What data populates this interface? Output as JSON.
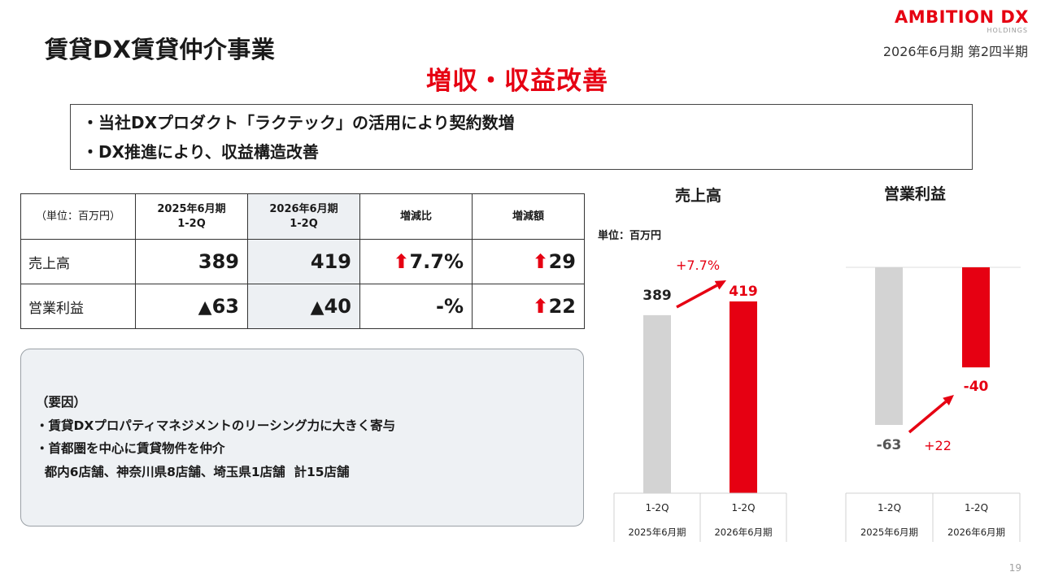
{
  "page": {
    "title": "賃貸DX賃貸仲介事業",
    "period": "2026年6月期 第2四半期",
    "page_number": "19"
  },
  "logo": {
    "main": "AMBITION DX",
    "sub": "HOLDINGS"
  },
  "headline": "増収・収益改善",
  "points": [
    "・当社DXプロダクト「ラクテック」の活用により契約数増",
    "・DX推進により、収益構造改善"
  ],
  "table": {
    "unit_label": "（単位：百万円）",
    "col_prev": [
      "2025年6月期",
      "1-2Q"
    ],
    "col_curr": [
      "2026年6月期",
      "1-2Q"
    ],
    "col_ratio": "増減比",
    "col_diff": "増減額",
    "rows": [
      {
        "label": "売上高",
        "prev": "389",
        "curr": "419",
        "ratio_arrow": "⬆",
        "ratio": "7.7%",
        "diff_arrow": "⬆",
        "diff": "29"
      },
      {
        "label": "営業利益",
        "prev_sign": "▲",
        "prev": "63",
        "curr_sign": "▲",
        "curr": "40",
        "ratio": "-%",
        "diff_arrow": "⬆",
        "diff": "22"
      }
    ]
  },
  "factors": {
    "heading": "（要因）",
    "lines": [
      "・賃貸DXプロパティマネジメントのリーシング力に大きく寄与",
      "・首都圏を中心に賃貸物件を仲介",
      "  都内6店舗、神奈川県8店舗、埼玉県1店舗  計15店舗"
    ]
  },
  "colors": {
    "accent": "#e60012",
    "bar_prev": "#d3d3d3",
    "box_bg": "#eef1f4"
  },
  "chart_data": [
    {
      "type": "bar",
      "title": "売上高",
      "unit": "単位：百万円",
      "categories": [
        "2025年6月期 1-2Q",
        "2026年6月期 1-2Q"
      ],
      "axis_top": [
        "1-2Q",
        "1-2Q"
      ],
      "axis_bottom": [
        "2025年6月期",
        "2026年6月期"
      ],
      "values": [
        389,
        419
      ],
      "value_labels": [
        "389",
        "419"
      ],
      "change_label": "+7.7%",
      "ylim": [
        0,
        419
      ]
    },
    {
      "type": "bar",
      "title": "営業利益",
      "categories": [
        "2025年6月期 1-2Q",
        "2026年6月期 1-2Q"
      ],
      "axis_top": [
        "1-2Q",
        "1-2Q"
      ],
      "axis_bottom": [
        "2025年6月期",
        "2026年6月期"
      ],
      "values": [
        -63,
        -40
      ],
      "value_labels": [
        "-63",
        "-40"
      ],
      "change_label": "+22",
      "ylim": [
        -63,
        0
      ]
    }
  ]
}
